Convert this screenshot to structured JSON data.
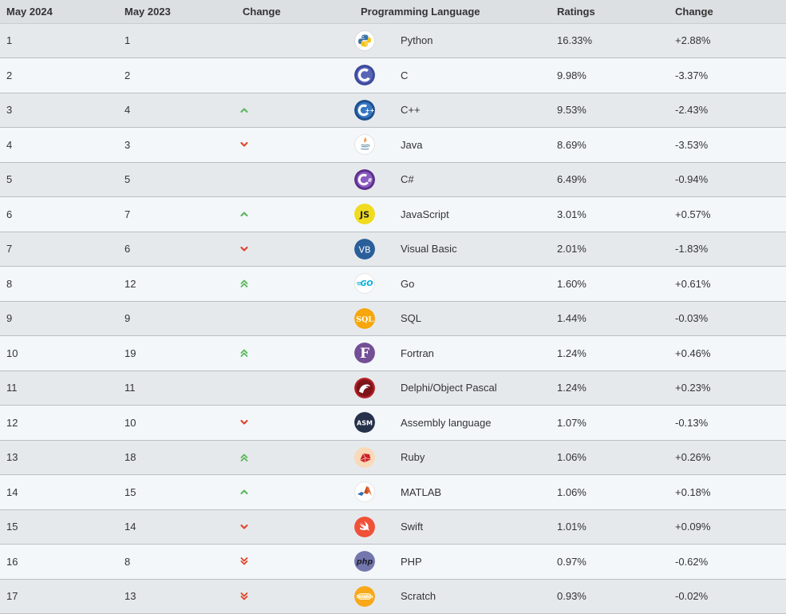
{
  "headers": [
    "May 2024",
    "May 2023",
    "Change",
    "Programming Language",
    "Ratings",
    "Change"
  ],
  "colors": {
    "up": "#5cb85c",
    "down": "#e0452a"
  },
  "rows": [
    {
      "rank": "1",
      "prev": "1",
      "trend": "none",
      "lang": "Python",
      "icon": "python-logo-icon",
      "rating": "16.33%",
      "change": "+2.88%"
    },
    {
      "rank": "2",
      "prev": "2",
      "trend": "none",
      "lang": "C",
      "icon": "c-logo-icon",
      "rating": "9.98%",
      "change": "-3.37%"
    },
    {
      "rank": "3",
      "prev": "4",
      "trend": "up",
      "lang": "C++",
      "icon": "cplusplus-logo-icon",
      "rating": "9.53%",
      "change": "-2.43%"
    },
    {
      "rank": "4",
      "prev": "3",
      "trend": "down",
      "lang": "Java",
      "icon": "java-logo-icon",
      "rating": "8.69%",
      "change": "-3.53%"
    },
    {
      "rank": "5",
      "prev": "5",
      "trend": "none",
      "lang": "C#",
      "icon": "csharp-logo-icon",
      "rating": "6.49%",
      "change": "-0.94%"
    },
    {
      "rank": "6",
      "prev": "7",
      "trend": "up",
      "lang": "JavaScript",
      "icon": "javascript-logo-icon",
      "rating": "3.01%",
      "change": "+0.57%"
    },
    {
      "rank": "7",
      "prev": "6",
      "trend": "down",
      "lang": "Visual Basic",
      "icon": "visual-basic-logo-icon",
      "rating": "2.01%",
      "change": "-1.83%"
    },
    {
      "rank": "8",
      "prev": "12",
      "trend": "up2",
      "lang": "Go",
      "icon": "go-logo-icon",
      "rating": "1.60%",
      "change": "+0.61%"
    },
    {
      "rank": "9",
      "prev": "9",
      "trend": "none",
      "lang": "SQL",
      "icon": "sql-logo-icon",
      "rating": "1.44%",
      "change": "-0.03%"
    },
    {
      "rank": "10",
      "prev": "19",
      "trend": "up2",
      "lang": "Fortran",
      "icon": "fortran-logo-icon",
      "rating": "1.24%",
      "change": "+0.46%"
    },
    {
      "rank": "11",
      "prev": "11",
      "trend": "none",
      "lang": "Delphi/Object Pascal",
      "icon": "delphi-logo-icon",
      "rating": "1.24%",
      "change": "+0.23%"
    },
    {
      "rank": "12",
      "prev": "10",
      "trend": "down",
      "lang": "Assembly language",
      "icon": "assembly-logo-icon",
      "rating": "1.07%",
      "change": "-0.13%"
    },
    {
      "rank": "13",
      "prev": "18",
      "trend": "up2",
      "lang": "Ruby",
      "icon": "ruby-logo-icon",
      "rating": "1.06%",
      "change": "+0.26%"
    },
    {
      "rank": "14",
      "prev": "15",
      "trend": "up",
      "lang": "MATLAB",
      "icon": "matlab-logo-icon",
      "rating": "1.06%",
      "change": "+0.18%"
    },
    {
      "rank": "15",
      "prev": "14",
      "trend": "down",
      "lang": "Swift",
      "icon": "swift-logo-icon",
      "rating": "1.01%",
      "change": "+0.09%"
    },
    {
      "rank": "16",
      "prev": "8",
      "trend": "down2",
      "lang": "PHP",
      "icon": "php-logo-icon",
      "rating": "0.97%",
      "change": "-0.62%"
    },
    {
      "rank": "17",
      "prev": "13",
      "trend": "down2",
      "lang": "Scratch",
      "icon": "scratch-logo-icon",
      "rating": "0.93%",
      "change": "-0.02%"
    }
  ]
}
